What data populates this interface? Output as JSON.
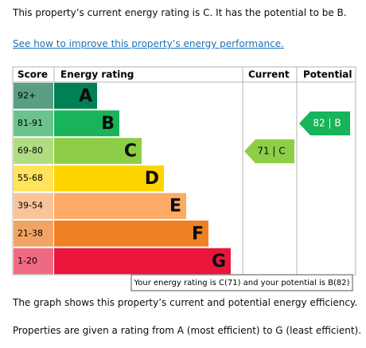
{
  "intro": "This property’s current energy rating is C. It has the potential to be B.",
  "link": "See how to improve this property’s energy performance.",
  "table": {
    "headers": [
      "Score",
      "Energy rating",
      "Current",
      "Potential"
    ],
    "bands": [
      {
        "score": "92+",
        "letter": "A",
        "color": "#008054",
        "score_color": "#5a9f84"
      },
      {
        "score": "81-91",
        "letter": "B",
        "color": "#19b459",
        "score_color": "#6cc28c"
      },
      {
        "score": "69-80",
        "letter": "C",
        "color": "#8dce46",
        "score_color": "#b2dc82"
      },
      {
        "score": "55-68",
        "letter": "D",
        "color": "#ffd500",
        "score_color": "#ffe35c"
      },
      {
        "score": "39-54",
        "letter": "E",
        "color": "#fcaa65",
        "score_color": "#f9c49a"
      },
      {
        "score": "21-38",
        "letter": "F",
        "color": "#ef8023",
        "score_color": "#f2a465"
      },
      {
        "score": "1-20",
        "letter": "G",
        "color": "#e9153b",
        "score_color": "#ee6a82"
      }
    ],
    "current": "71 | C",
    "potential": "82 | B",
    "tooltip": "Your energy rating is C(71) and your potential is B(82)"
  },
  "footer": [
    "The graph shows this property’s current and potential energy efficiency.",
    "Properties are given a rating from A (most efficient) to G (least efficient)."
  ]
}
